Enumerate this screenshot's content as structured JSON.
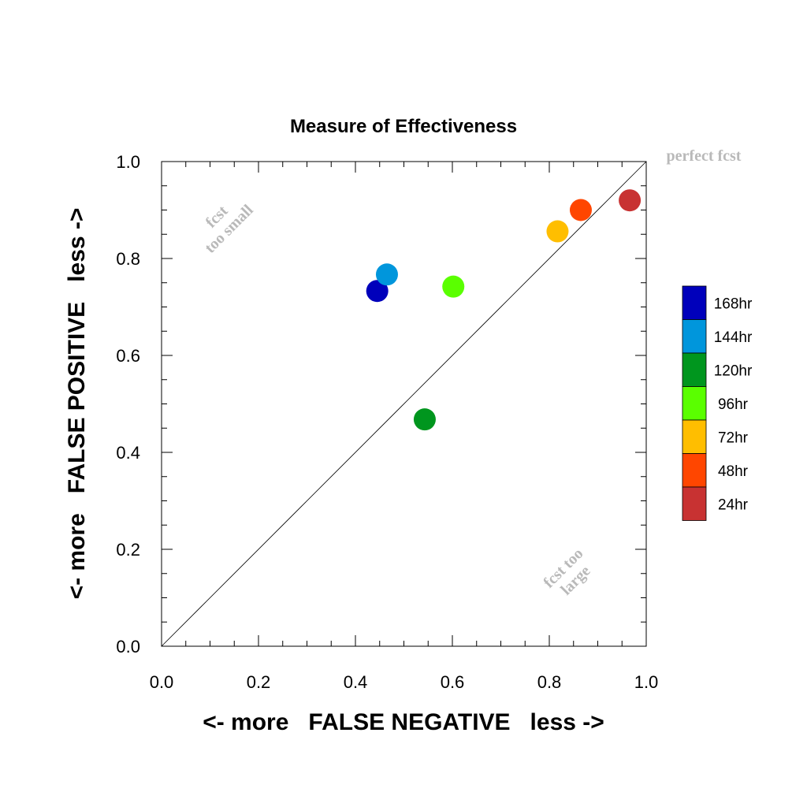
{
  "chart_data": {
    "type": "scatter",
    "title": "Measure of Effectiveness",
    "xlabel": "<- more   FALSE NEGATIVE   less ->",
    "ylabel": "<- more   FALSE POSITIVE   less ->",
    "xlim": [
      0.0,
      1.0
    ],
    "ylim": [
      0.0,
      1.0
    ],
    "xticks": [
      "0.0",
      "0.2",
      "0.4",
      "0.6",
      "0.8",
      "1.0"
    ],
    "yticks": [
      "0.0",
      "0.2",
      "0.4",
      "0.6",
      "0.8",
      "1.0"
    ],
    "grid": false,
    "legend_position": "right",
    "diagonal_line": true,
    "annotations": {
      "perfect": "perfect fcst",
      "too_small_line1": "fcst",
      "too_small_line2": "too small",
      "too_large_line1": "fcst too",
      "too_large_line2": "large"
    },
    "series": [
      {
        "name": "168hr",
        "x": 0.445,
        "y": 0.733,
        "color": "#0000bb"
      },
      {
        "name": "144hr",
        "x": 0.465,
        "y": 0.767,
        "color": "#0096dc"
      },
      {
        "name": "120hr",
        "x": 0.543,
        "y": 0.468,
        "color": "#00961e"
      },
      {
        "name": "96hr",
        "x": 0.602,
        "y": 0.742,
        "color": "#5aff00"
      },
      {
        "name": "72hr",
        "x": 0.817,
        "y": 0.856,
        "color": "#ffbe00"
      },
      {
        "name": "48hr",
        "x": 0.865,
        "y": 0.9,
        "color": "#ff4600"
      },
      {
        "name": "24hr",
        "x": 0.966,
        "y": 0.92,
        "color": "#c83232"
      }
    ]
  }
}
